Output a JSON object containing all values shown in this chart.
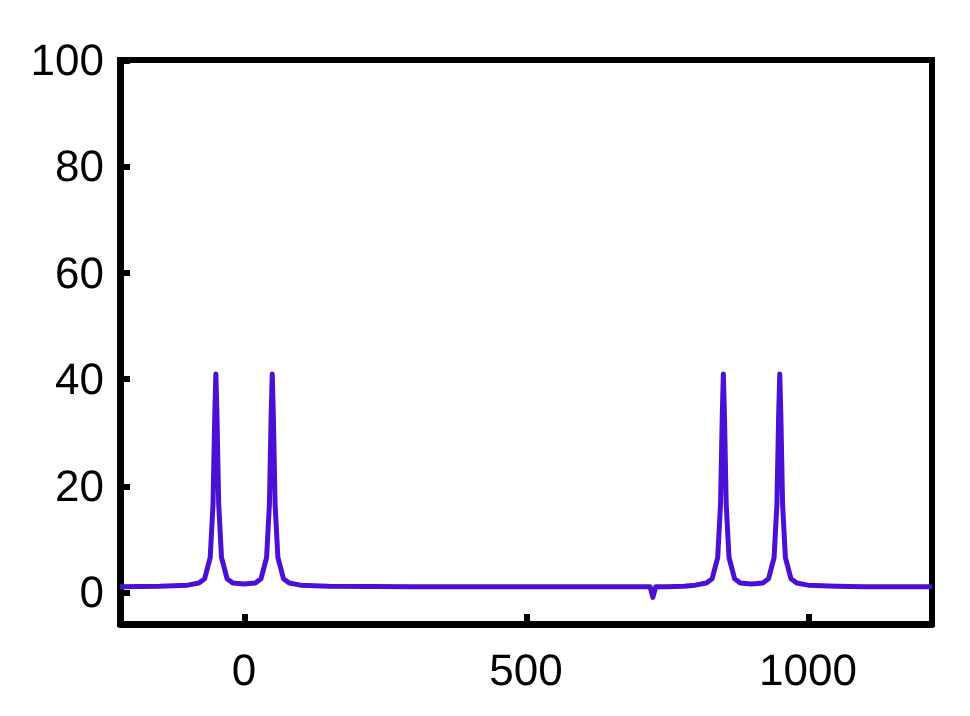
{
  "chart_data": {
    "type": "line",
    "xlim": [
      -220,
      1220
    ],
    "xticks": [
      0,
      500,
      1000
    ],
    "ylim": [
      -6,
      100
    ],
    "yticks": [
      0,
      20,
      40,
      60,
      80,
      100
    ],
    "grid": false,
    "marker": "none",
    "line_style": "solid",
    "series": [
      {
        "color": "#4b10d6",
        "x": [
          -220,
          -150,
          -100,
          -80,
          -70,
          -60,
          -55,
          -52,
          -50,
          -48,
          -45,
          -40,
          -30,
          -20,
          0,
          20,
          30,
          40,
          45,
          48,
          50,
          52,
          55,
          60,
          70,
          80,
          100,
          150,
          300,
          500,
          700,
          720,
          725,
          730,
          750,
          780,
          800,
          820,
          830,
          840,
          845,
          848,
          850,
          852,
          855,
          860,
          870,
          880,
          900,
          920,
          930,
          940,
          945,
          948,
          950,
          952,
          955,
          960,
          970,
          980,
          1000,
          1050,
          1100,
          1220
        ],
        "values": [
          1,
          1.1,
          1.3,
          1.7,
          2.5,
          6.5,
          16.6,
          33,
          41,
          33,
          16.6,
          6.5,
          2.5,
          1.7,
          1.5,
          1.7,
          2.5,
          6.5,
          16.6,
          33,
          41,
          33,
          16.6,
          6.5,
          2.5,
          1.7,
          1.3,
          1.1,
          1,
          1,
          1,
          1,
          -1,
          1,
          1,
          1.1,
          1.3,
          1.7,
          2.5,
          6.5,
          16.6,
          33,
          41,
          33,
          16.6,
          6.5,
          2.5,
          1.7,
          1.5,
          1.7,
          2.5,
          6.5,
          16.6,
          33,
          41,
          33,
          16.6,
          6.5,
          2.5,
          1.7,
          1.3,
          1.1,
          1,
          1
        ]
      }
    ]
  }
}
